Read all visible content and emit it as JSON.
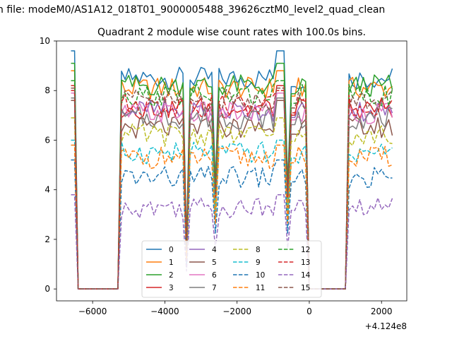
{
  "figure": {
    "suptitle": "n file: modeM0/AS1A12_018T01_9000005488_39626cztM0_level2_quad_clean"
  },
  "chart_data": {
    "type": "line",
    "title": "Quadrant 2 module wise count rates with 100.0s bins.",
    "xlabel": "",
    "ylabel": "",
    "x_offset_label": "+4.124e8",
    "xlim": [
      -7000,
      2700
    ],
    "ylim": [
      -0.48,
      10.0
    ],
    "xticks": [
      -6000,
      -4000,
      -2000,
      0,
      2000
    ],
    "xtick_labels": [
      "−6000",
      "−4000",
      "−2000",
      "0",
      "2000"
    ],
    "yticks": [
      0,
      2,
      4,
      6,
      8,
      10
    ],
    "ytick_labels": [
      "0",
      "2",
      "4",
      "6",
      "8",
      "10"
    ],
    "grid": false,
    "legend_position": "lower-center",
    "legend_columns": 4,
    "gaps": [
      [
        -6400,
        -5200
      ],
      [
        0,
        1100
      ]
    ],
    "troughs": [
      -3400,
      -2600,
      -600
    ],
    "series": [
      {
        "name": "0",
        "color": "#1f77b4",
        "dash": "solid",
        "level": 8.5,
        "peak": 9.6
      },
      {
        "name": "1",
        "color": "#ff7f0e",
        "dash": "solid",
        "level": 8.1,
        "peak": 8.8
      },
      {
        "name": "2",
        "color": "#2ca02c",
        "dash": "solid",
        "level": 8.2,
        "peak": 9.1
      },
      {
        "name": "3",
        "color": "#d62728",
        "dash": "solid",
        "level": 7.3,
        "peak": 8.2
      },
      {
        "name": "4",
        "color": "#9467bd",
        "dash": "solid",
        "level": 7.2,
        "peak": 7.9
      },
      {
        "name": "5",
        "color": "#8c564b",
        "dash": "solid",
        "level": 6.5,
        "peak": 7.6
      },
      {
        "name": "6",
        "color": "#e377c2",
        "dash": "solid",
        "level": 7.1,
        "peak": 7.9
      },
      {
        "name": "7",
        "color": "#7f7f7f",
        "dash": "solid",
        "level": 6.9,
        "peak": 7.7
      },
      {
        "name": "8",
        "color": "#bcbd22",
        "dash": "dashed",
        "level": 6.2,
        "peak": 6.9
      },
      {
        "name": "9",
        "color": "#17becf",
        "dash": "dashed",
        "level": 5.5,
        "peak": 6.0
      },
      {
        "name": "10",
        "color": "#1f77b4",
        "dash": "dashed",
        "level": 4.5,
        "peak": 5.2
      },
      {
        "name": "11",
        "color": "#ff7f0e",
        "dash": "dashed",
        "level": 5.3,
        "peak": 5.8
      },
      {
        "name": "12",
        "color": "#2ca02c",
        "dash": "dashed",
        "level": 7.8,
        "peak": 8.4
      },
      {
        "name": "13",
        "color": "#d62728",
        "dash": "dashed",
        "level": 7.4,
        "peak": 8.0
      },
      {
        "name": "14",
        "color": "#9467bd",
        "dash": "dashed",
        "level": 3.3,
        "peak": 3.8
      },
      {
        "name": "15",
        "color": "#8c564b",
        "dash": "dashed",
        "level": 7.6,
        "peak": 8.1
      }
    ]
  }
}
